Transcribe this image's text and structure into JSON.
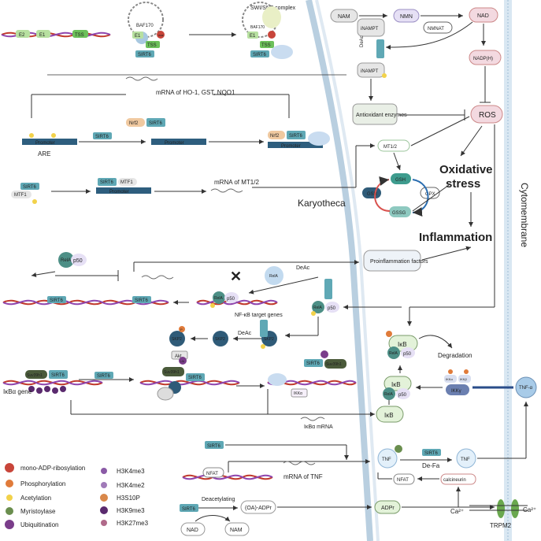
{
  "labels": {
    "baf170": "BAF170",
    "swi_snf": "SWI/SNF complex",
    "baf170b": "BAF170",
    "e2": "E2",
    "e1": "E1",
    "tss": "TSS",
    "sirt6": "SIRT6",
    "mrna_ho1": "mRNA of HO-1, GST, NQO1",
    "nrf2": "Nrf2",
    "promoter": "Promoter",
    "are": "ARE",
    "mtf1": "MTF1",
    "mrna_mt": "mRNA of MT1/2",
    "nam": "NAM",
    "nmn": "NMN",
    "nmnat": "NMNAT",
    "nad": "NAD",
    "nadph": "NADP(H)",
    "inampt": "iNAMPT",
    "deac": "DeAc",
    "antioxidant": "Antioxidant enzymes",
    "ros": "ROS",
    "mt12": "MT1/2",
    "gsh": "GSH",
    "gsr": "GSR",
    "gpx": "GPX",
    "gssg": "GSSG",
    "oxidative": "Oxidative",
    "stress": "stress",
    "karyotheca": "Karyotheca",
    "cytomembrane": "Cytomembrane",
    "inflammation": "Inflammation",
    "proinflammation": "Proinflammation factors",
    "rela": "RelA",
    "p50": "p50",
    "nfkb_target": "NF-κB target genes",
    "skp2": "SKP2",
    "akt": "Akt",
    "suv39h1": "Suv39h1",
    "ub": "Ub",
    "ikba_gene": "IκBα gene",
    "ikka": "IKKα",
    "ikba_mrna": "IκBα mRNA",
    "ikb": "IκB",
    "degradation": "Degradation",
    "ikkb": "IKKβ",
    "ikkg": "IKKγ",
    "tnfa": "TNF-α",
    "tnf": "TNF",
    "defa": "De-Fa",
    "nfat": "NFAT",
    "mrna_tnf": "mRNA of TNF",
    "calcineurin": "calcineurin",
    "ca2": "Ca²⁺",
    "trpm2": "TRPM2",
    "deacetylating": "Deacetylating",
    "oaadpr": "(OA)-ADPr",
    "adpr": "ADPr",
    "nad2": "NAD",
    "nam2": "NAM",
    "p": "P",
    "mar": "mar"
  },
  "legend": {
    "mono": "mono-ADP-ribosylation",
    "phos": "Phosphorylation",
    "acet": "Acetylation",
    "myri": "Myristoylase",
    "ubiq": "Ubiquitination",
    "h3k4me3": "H3K4me3",
    "h3k4me2": "H3K4me2",
    "h3s10p": "H3S10P",
    "h3k9me3": "H3K9me3",
    "h3k27me3": "H3K27me3"
  },
  "colors": {
    "sirt6": "#5fa8b5",
    "rela": "#4d8f86",
    "skp2": "#2f5b78",
    "promoter": "#2e5e7e",
    "membrane": "#b9cfe0",
    "ros": "#f3d9e0",
    "phos": "#e07b3a",
    "acet": "#f2d24a",
    "mono": "#c8453a",
    "myri": "#6a8e4e",
    "ubiq": "#7a3d8a",
    "k4me3": "#8a5aa6",
    "k9me3": "#5a2a6e",
    "k27me3": "#b06a8a"
  }
}
